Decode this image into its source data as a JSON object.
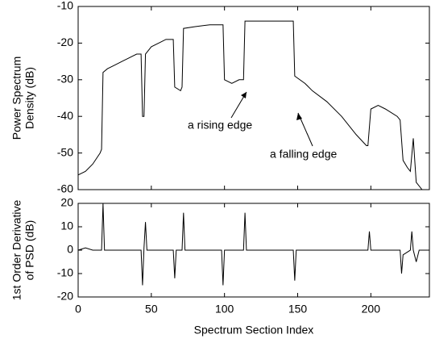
{
  "chart_data": [
    {
      "type": "line",
      "ylabel": [
        "Power Spectrum",
        "Density (dB)"
      ],
      "xlim": [
        0,
        240
      ],
      "ylim": [
        -60,
        -10
      ],
      "xticks": [
        0,
        50,
        100,
        150,
        200
      ],
      "yticks": [
        -60,
        -50,
        -40,
        -30,
        -20,
        -10
      ],
      "color": "#000000",
      "x": [
        0,
        5,
        10,
        15,
        16,
        17,
        20,
        25,
        30,
        35,
        40,
        43,
        44,
        45,
        46,
        50,
        55,
        60,
        65,
        66,
        70,
        71,
        72,
        80,
        90,
        99,
        100,
        105,
        110,
        113,
        114,
        120,
        130,
        140,
        147,
        148,
        155,
        160,
        170,
        180,
        190,
        197,
        198,
        200,
        205,
        210,
        218,
        220,
        222,
        225,
        227,
        229,
        231,
        235,
        240
      ],
      "values": [
        -56,
        -55,
        -53,
        -50,
        -49,
        -28,
        -27,
        -26,
        -25,
        -24,
        -23,
        -23,
        -40,
        -40,
        -23,
        -21,
        -20,
        -19,
        -19,
        -32,
        -33,
        -32,
        -16,
        -15.5,
        -15,
        -15,
        -30,
        -31,
        -30,
        -30,
        -14,
        -14,
        -14,
        -14,
        -14,
        -29,
        -31,
        -33,
        -36,
        -40,
        -45,
        -48,
        -48,
        -38,
        -37,
        -38,
        -40,
        -41,
        -52,
        -54,
        -55,
        -46,
        -58,
        -60,
        -60
      ],
      "annotations": [
        "a rising edge",
        "a falling edge"
      ]
    },
    {
      "type": "line",
      "ylabel": [
        "1st Order Derivative",
        "of PSD (dB)"
      ],
      "xlabel": "Spectrum Section Index",
      "xlim": [
        0,
        240
      ],
      "ylim": [
        -20,
        20
      ],
      "xticks": [
        0,
        50,
        100,
        150,
        200
      ],
      "yticks": [
        -20,
        -10,
        0,
        10,
        20
      ],
      "color": "#000000",
      "x": [
        0,
        5,
        10,
        16,
        17,
        18,
        30,
        43,
        44,
        45,
        46,
        47,
        60,
        65,
        66,
        67,
        71,
        72,
        73,
        90,
        98,
        99,
        100,
        113,
        114,
        115,
        130,
        147,
        148,
        149,
        180,
        198,
        199,
        200,
        215,
        220,
        221,
        222,
        227,
        228,
        229,
        231,
        233,
        240
      ],
      "values": [
        0,
        1,
        0,
        0,
        20,
        0,
        0,
        0,
        -15,
        1,
        12,
        0,
        0,
        0,
        -12,
        0,
        0,
        16,
        0,
        0,
        0,
        -15,
        0,
        0,
        16,
        0,
        0,
        0,
        -13,
        0,
        0,
        0,
        8,
        0,
        0,
        0,
        -10,
        -2,
        0,
        8,
        0,
        -5,
        0,
        0
      ]
    }
  ]
}
